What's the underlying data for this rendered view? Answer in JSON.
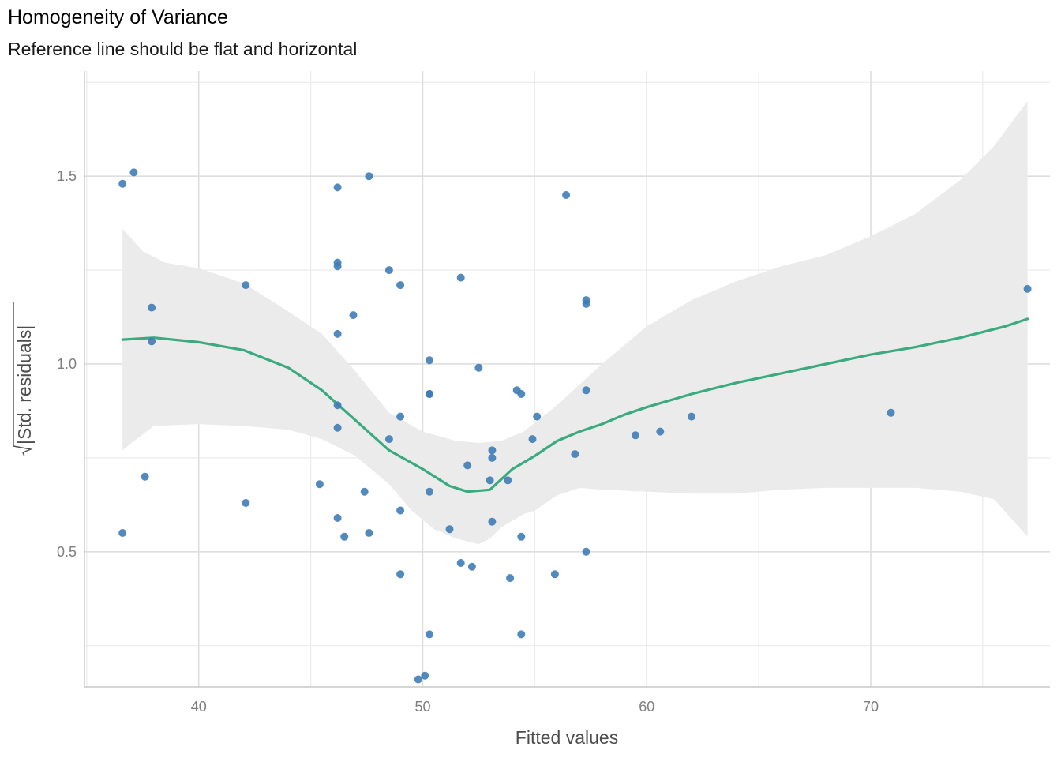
{
  "chart_data": {
    "type": "scatter",
    "title": "Homogeneity of Variance",
    "subtitle": "Reference line should be flat and horizontal",
    "xlabel": "Fitted values",
    "ylabel": "|Std. residuals|",
    "xlim": [
      34.9,
      78.0
    ],
    "ylim": [
      0.14,
      1.78
    ],
    "x_ticks": [
      40,
      50,
      60,
      70
    ],
    "x_tick_labels": [
      "40",
      "50",
      "60",
      "70"
    ],
    "x_minor_ticks": [
      35,
      45,
      55,
      65,
      75
    ],
    "y_ticks": [
      0.5,
      1.0,
      1.5
    ],
    "y_tick_labels": [
      "0.5",
      "1.0",
      "1.5"
    ],
    "y_minor_ticks": [
      0.25,
      0.75,
      1.25,
      1.75
    ],
    "grid": true,
    "point_color": "#3a7ab5",
    "line_color": "#3aaa80",
    "band_color": "#ebebeb",
    "points": [
      [
        36.6,
        1.48
      ],
      [
        37.1,
        1.51
      ],
      [
        36.6,
        0.55
      ],
      [
        37.6,
        0.7
      ],
      [
        37.9,
        1.15
      ],
      [
        37.9,
        1.06
      ],
      [
        42.1,
        1.21
      ],
      [
        42.1,
        0.63
      ],
      [
        45.4,
        0.68
      ],
      [
        46.2,
        1.47
      ],
      [
        46.2,
        1.26
      ],
      [
        46.2,
        1.27
      ],
      [
        46.2,
        1.08
      ],
      [
        46.2,
        0.89
      ],
      [
        46.2,
        0.83
      ],
      [
        46.2,
        0.59
      ],
      [
        46.5,
        0.54
      ],
      [
        46.9,
        1.13
      ],
      [
        47.4,
        0.66
      ],
      [
        47.6,
        1.5
      ],
      [
        47.6,
        0.55
      ],
      [
        48.5,
        1.25
      ],
      [
        48.5,
        0.8
      ],
      [
        49.0,
        1.21
      ],
      [
        49.0,
        0.86
      ],
      [
        49.0,
        0.61
      ],
      [
        49.0,
        0.44
      ],
      [
        49.8,
        0.16
      ],
      [
        50.1,
        0.17
      ],
      [
        50.3,
        1.01
      ],
      [
        50.3,
        0.92
      ],
      [
        50.3,
        0.92
      ],
      [
        50.3,
        0.66
      ],
      [
        50.3,
        0.28
      ],
      [
        51.2,
        0.56
      ],
      [
        51.7,
        1.23
      ],
      [
        51.7,
        0.47
      ],
      [
        52.0,
        0.73
      ],
      [
        52.2,
        0.46
      ],
      [
        52.5,
        0.99
      ],
      [
        53.0,
        0.69
      ],
      [
        53.1,
        0.77
      ],
      [
        53.1,
        0.75
      ],
      [
        53.1,
        0.58
      ],
      [
        53.8,
        0.69
      ],
      [
        53.9,
        0.43
      ],
      [
        54.2,
        0.93
      ],
      [
        54.4,
        0.92
      ],
      [
        54.4,
        0.54
      ],
      [
        54.4,
        0.28
      ],
      [
        54.9,
        0.8
      ],
      [
        55.1,
        0.86
      ],
      [
        55.9,
        0.44
      ],
      [
        56.4,
        1.45
      ],
      [
        56.8,
        0.76
      ],
      [
        57.3,
        1.17
      ],
      [
        57.3,
        1.16
      ],
      [
        57.3,
        0.93
      ],
      [
        57.3,
        0.5
      ],
      [
        59.5,
        0.81
      ],
      [
        60.6,
        0.82
      ],
      [
        62.0,
        0.86
      ],
      [
        70.9,
        0.87
      ],
      [
        77.0,
        1.2
      ]
    ],
    "smooth_line": [
      [
        36.6,
        1.065
      ],
      [
        38.0,
        1.07
      ],
      [
        40.0,
        1.058
      ],
      [
        42.0,
        1.037
      ],
      [
        44.0,
        0.99
      ],
      [
        45.5,
        0.93
      ],
      [
        47.0,
        0.85
      ],
      [
        48.5,
        0.77
      ],
      [
        50.0,
        0.72
      ],
      [
        51.2,
        0.675
      ],
      [
        52.0,
        0.66
      ],
      [
        53.0,
        0.665
      ],
      [
        54.0,
        0.72
      ],
      [
        55.0,
        0.755
      ],
      [
        56.0,
        0.795
      ],
      [
        57.0,
        0.82
      ],
      [
        58.0,
        0.84
      ],
      [
        59.0,
        0.865
      ],
      [
        60.0,
        0.885
      ],
      [
        62.0,
        0.92
      ],
      [
        64.0,
        0.95
      ],
      [
        66.0,
        0.975
      ],
      [
        68.0,
        1.0
      ],
      [
        70.0,
        1.025
      ],
      [
        72.0,
        1.045
      ],
      [
        74.0,
        1.07
      ],
      [
        76.0,
        1.1
      ],
      [
        77.0,
        1.12
      ]
    ],
    "band_upper": [
      [
        36.6,
        1.36
      ],
      [
        37.5,
        1.3
      ],
      [
        38.5,
        1.27
      ],
      [
        40.0,
        1.255
      ],
      [
        42.0,
        1.215
      ],
      [
        44.0,
        1.14
      ],
      [
        45.5,
        1.08
      ],
      [
        47.0,
        0.98
      ],
      [
        48.5,
        0.87
      ],
      [
        50.0,
        0.82
      ],
      [
        51.5,
        0.795
      ],
      [
        52.5,
        0.79
      ],
      [
        53.5,
        0.795
      ],
      [
        54.5,
        0.82
      ],
      [
        56.0,
        0.89
      ],
      [
        58.0,
        1.0
      ],
      [
        60.0,
        1.1
      ],
      [
        62.0,
        1.17
      ],
      [
        64.0,
        1.22
      ],
      [
        66.0,
        1.26
      ],
      [
        68.0,
        1.29
      ],
      [
        70.0,
        1.34
      ],
      [
        72.0,
        1.4
      ],
      [
        74.0,
        1.49
      ],
      [
        75.5,
        1.58
      ],
      [
        77.0,
        1.7
      ]
    ],
    "band_lower": [
      [
        77.0,
        0.54
      ],
      [
        75.5,
        0.64
      ],
      [
        74.0,
        0.66
      ],
      [
        72.0,
        0.67
      ],
      [
        70.0,
        0.67
      ],
      [
        68.0,
        0.67
      ],
      [
        66.0,
        0.665
      ],
      [
        64.0,
        0.655
      ],
      [
        62.0,
        0.655
      ],
      [
        60.0,
        0.66
      ],
      [
        58.0,
        0.665
      ],
      [
        57.0,
        0.67
      ],
      [
        56.0,
        0.65
      ],
      [
        55.0,
        0.61
      ],
      [
        54.5,
        0.6
      ],
      [
        53.5,
        0.565
      ],
      [
        53.0,
        0.535
      ],
      [
        52.5,
        0.52
      ],
      [
        51.5,
        0.535
      ],
      [
        50.5,
        0.56
      ],
      [
        49.5,
        0.61
      ],
      [
        48.5,
        0.68
      ],
      [
        47.0,
        0.755
      ],
      [
        45.5,
        0.8
      ],
      [
        44.0,
        0.825
      ],
      [
        42.0,
        0.835
      ],
      [
        40.0,
        0.84
      ],
      [
        38.0,
        0.835
      ],
      [
        37.0,
        0.79
      ],
      [
        36.6,
        0.77
      ]
    ]
  }
}
